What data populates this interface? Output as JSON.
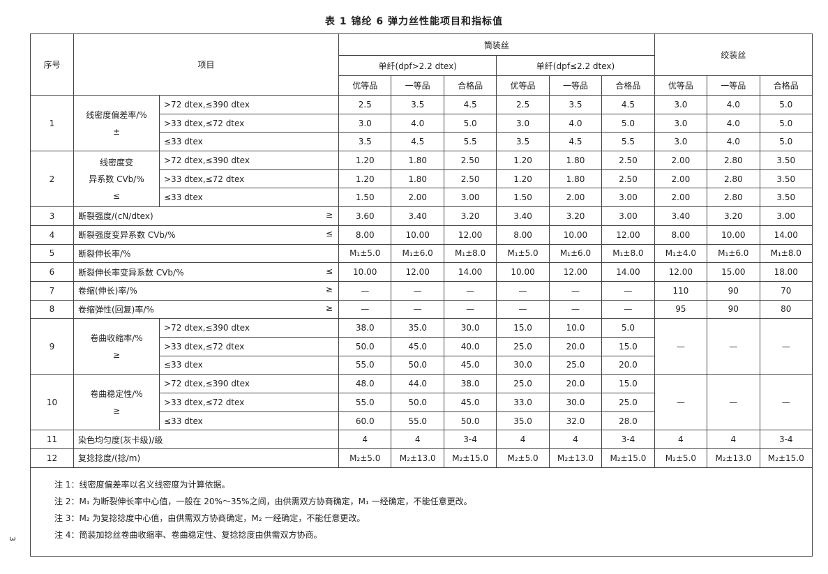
{
  "title": "表 1   锦纶 6 弹力丝性能项目和指标值",
  "page_number": "3",
  "header": {
    "no": "序号",
    "item": "项目",
    "tube": "筒装丝",
    "hank": "绞装丝",
    "mono1": "单纤(dpf>2.2 dtex)",
    "mono2": "单纤(dpf≤2.2 dtex)",
    "grades": [
      "优等品",
      "一等品",
      "合格品",
      "优等品",
      "一等品",
      "合格品",
      "优等品",
      "一等品",
      "合格品"
    ]
  },
  "rows": [
    {
      "no": "1",
      "label": "线密度偏差率/%\n±",
      "sub": [
        {
          "label": ">72 dtex,≤390 dtex",
          "values": [
            "2.5",
            "3.5",
            "4.5",
            "2.5",
            "3.5",
            "4.5",
            "3.0",
            "4.0",
            "5.0"
          ]
        },
        {
          "label": ">33 dtex,≤72 dtex",
          "values": [
            "3.0",
            "4.0",
            "5.0",
            "3.0",
            "4.0",
            "5.0",
            "3.0",
            "4.0",
            "5.0"
          ]
        },
        {
          "label": "≤33 dtex",
          "values": [
            "3.5",
            "4.5",
            "5.5",
            "3.5",
            "4.5",
            "5.5",
            "3.0",
            "4.0",
            "5.0"
          ]
        }
      ]
    },
    {
      "no": "2",
      "label": "线密度变\n异系数 CVb/%\n≤",
      "sub": [
        {
          "label": ">72 dtex,≤390 dtex",
          "values": [
            "1.20",
            "1.80",
            "2.50",
            "1.20",
            "1.80",
            "2.50",
            "2.00",
            "2.80",
            "3.50"
          ]
        },
        {
          "label": ">33 dtex,≤72 dtex",
          "values": [
            "1.20",
            "1.80",
            "2.50",
            "1.20",
            "1.80",
            "2.50",
            "2.00",
            "2.80",
            "3.50"
          ]
        },
        {
          "label": "≤33 dtex",
          "values": [
            "1.50",
            "2.00",
            "3.00",
            "1.50",
            "2.00",
            "3.00",
            "2.00",
            "2.80",
            "3.50"
          ]
        }
      ]
    },
    {
      "no": "3",
      "label": "断裂强度/(cN/dtex)",
      "sym": "≥",
      "values": [
        "3.60",
        "3.40",
        "3.20",
        "3.40",
        "3.20",
        "3.00",
        "3.40",
        "3.20",
        "3.00"
      ]
    },
    {
      "no": "4",
      "label": "断裂强度变异系数 CVb/%",
      "sym": "≤",
      "values": [
        "8.00",
        "10.00",
        "12.00",
        "8.00",
        "10.00",
        "12.00",
        "8.00",
        "10.00",
        "14.00"
      ]
    },
    {
      "no": "5",
      "label": "断裂伸长率/%",
      "sym": "",
      "values": [
        "M₁±5.0",
        "M₁±6.0",
        "M₁±8.0",
        "M₁±5.0",
        "M₁±6.0",
        "M₁±8.0",
        "M₁±4.0",
        "M₁±6.0",
        "M₁±8.0"
      ]
    },
    {
      "no": "6",
      "label": "断裂伸长率变异系数 CVb/%",
      "sym": "≤",
      "values": [
        "10.00",
        "12.00",
        "14.00",
        "10.00",
        "12.00",
        "14.00",
        "12.00",
        "15.00",
        "18.00"
      ]
    },
    {
      "no": "7",
      "label": "卷缩(伸长)率/%",
      "sym": "≥",
      "values": [
        "—",
        "—",
        "—",
        "—",
        "—",
        "—",
        "110",
        "90",
        "70"
      ]
    },
    {
      "no": "8",
      "label": "卷缩弹性(回复)率/%",
      "sym": "≥",
      "values": [
        "—",
        "—",
        "—",
        "—",
        "—",
        "—",
        "95",
        "90",
        "80"
      ]
    },
    {
      "no": "9",
      "label": "卷曲收缩率/%\n≥",
      "merged": [
        "—",
        "—",
        "—"
      ],
      "sub": [
        {
          "label": ">72 dtex,≤390 dtex",
          "values": [
            "38.0",
            "35.0",
            "30.0",
            "15.0",
            "10.0",
            "5.0"
          ]
        },
        {
          "label": ">33 dtex,≤72 dtex",
          "values": [
            "50.0",
            "45.0",
            "40.0",
            "25.0",
            "20.0",
            "15.0"
          ]
        },
        {
          "label": "≤33 dtex",
          "values": [
            "55.0",
            "50.0",
            "45.0",
            "30.0",
            "25.0",
            "20.0"
          ]
        }
      ]
    },
    {
      "no": "10",
      "label": "卷曲稳定性/%\n≥",
      "merged": [
        "—",
        "—",
        "—"
      ],
      "sub": [
        {
          "label": ">72 dtex,≤390 dtex",
          "values": [
            "48.0",
            "44.0",
            "38.0",
            "25.0",
            "20.0",
            "15.0"
          ]
        },
        {
          "label": ">33 dtex,≤72 dtex",
          "values": [
            "55.0",
            "50.0",
            "45.0",
            "33.0",
            "30.0",
            "25.0"
          ]
        },
        {
          "label": "≤33 dtex",
          "values": [
            "60.0",
            "55.0",
            "50.0",
            "35.0",
            "32.0",
            "28.0"
          ]
        }
      ]
    },
    {
      "no": "11",
      "label": "染色均匀度(灰卡级)/级",
      "sym": "",
      "values": [
        "4",
        "4",
        "3-4",
        "4",
        "4",
        "3-4",
        "4",
        "4",
        "3-4"
      ]
    },
    {
      "no": "12",
      "label": "复捻捻度/(捻/m)",
      "sym": "",
      "values": [
        "M₂±5.0",
        "M₂±13.0",
        "M₂±15.0",
        "M₂±5.0",
        "M₂±13.0",
        "M₂±15.0",
        "M₂±5.0",
        "M₂±13.0",
        "M₂±15.0"
      ]
    }
  ],
  "notes": [
    "注 1：线密度偏差率以名义线密度为计算依据。",
    "注 2：M₁ 为断裂伸长率中心值，一般在 20%～35%之间，由供需双方协商确定，M₁ 一经确定，不能任意更改。",
    "注 3：M₂ 为复捻捻度中心值，由供需双方协商确定，M₂ 一经确定，不能任意更改。",
    "注 4：筒装加捻丝卷曲收缩率、卷曲稳定性、复捻捻度由供需双方协商。"
  ]
}
